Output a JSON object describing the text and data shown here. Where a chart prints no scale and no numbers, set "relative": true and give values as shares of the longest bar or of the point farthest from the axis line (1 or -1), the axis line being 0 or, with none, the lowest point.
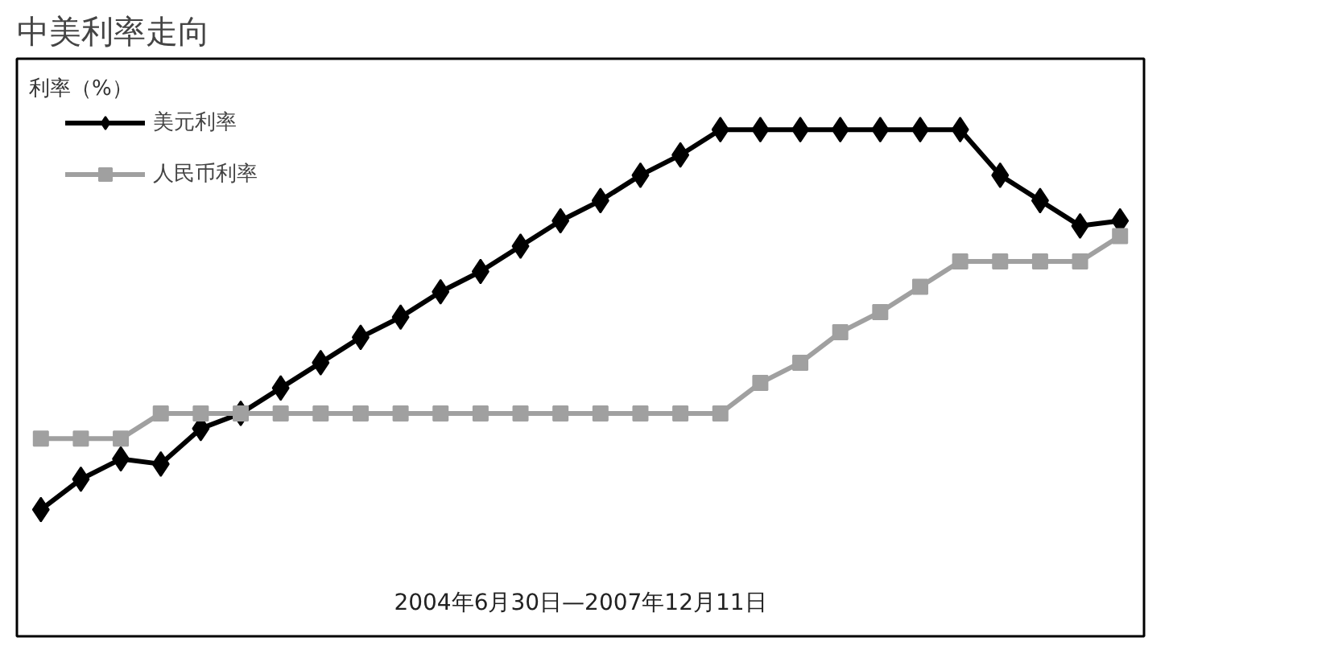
{
  "chart_data": {
    "type": "line",
    "title": "中美利率走向",
    "ylabel": "利率（%）",
    "xlabel": "2004年6月30日—2007年12月11日",
    "relative": true,
    "legend": "top left",
    "line_style": "solid",
    "categories": [
      null,
      null,
      null,
      null,
      null,
      null,
      null,
      null,
      null,
      null,
      null,
      null,
      null,
      null,
      null,
      null,
      null,
      null,
      null,
      null,
      null,
      null,
      null,
      null,
      null,
      null,
      null,
      null
    ],
    "series": [
      {
        "name": "美元利率",
        "color": "#000000",
        "marker": "diamond",
        "values": [
          0.25,
          0.31,
          0.35,
          0.34,
          0.41,
          0.44,
          0.49,
          0.54,
          0.59,
          0.63,
          0.68,
          0.72,
          0.77,
          0.82,
          0.86,
          0.91,
          0.95,
          1.0,
          1.0,
          1.0,
          1.0,
          1.0,
          1.0,
          1.0,
          0.91,
          0.86,
          0.81,
          0.82
        ]
      },
      {
        "name": "人民币利率",
        "color": "#a0a0a0",
        "marker": "square",
        "values": [
          0.39,
          0.39,
          0.39,
          0.44,
          0.44,
          0.44,
          0.44,
          0.44,
          0.44,
          0.44,
          0.44,
          0.44,
          0.44,
          0.44,
          0.44,
          0.44,
          0.44,
          0.44,
          0.5,
          0.54,
          0.6,
          0.64,
          0.69,
          0.74,
          0.74,
          0.74,
          0.74,
          0.79
        ]
      }
    ]
  }
}
